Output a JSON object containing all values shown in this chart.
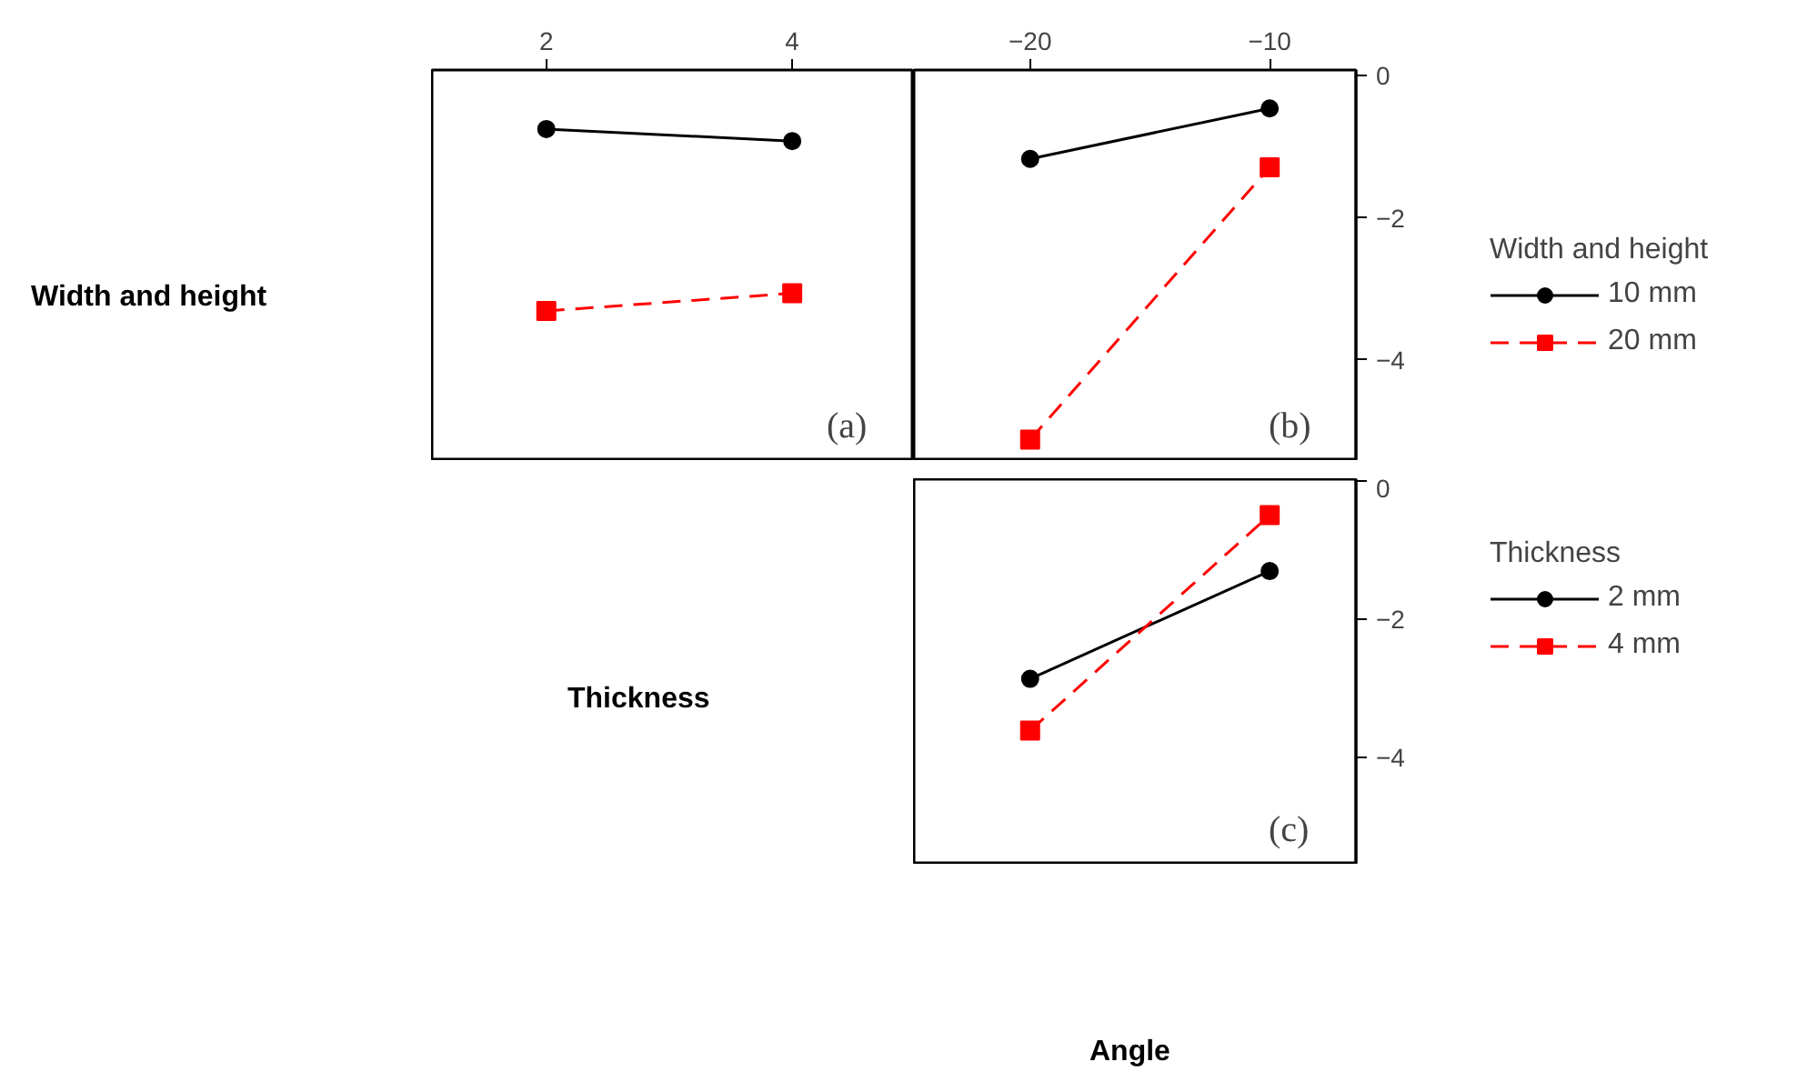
{
  "chart_data": [
    {
      "type": "line",
      "ylabel": "Width and height",
      "xlabel": "Thickness",
      "annotations": [
        "(a)"
      ],
      "x": [
        2,
        4
      ],
      "xlim": [
        1.07,
        4.99
      ],
      "xticks": [
        2,
        4
      ],
      "ylim": [
        -5.42,
        0.08
      ],
      "tick_labels": "x",
      "grid": false,
      "legend": false,
      "series": [
        {
          "color": "#000000",
          "marker": "circle",
          "line_style": "solid",
          "values": [
            -0.75,
            -0.92
          ]
        },
        {
          "color": "#ff0000",
          "marker": "square",
          "line_style": "dashed",
          "values": [
            -3.31,
            -3.06
          ]
        }
      ]
    },
    {
      "type": "line",
      "annotations": [
        "(b)"
      ],
      "legend_title": "Width and height",
      "x": [
        -20,
        -10
      ],
      "xlim": [
        -24.85,
        -6.4
      ],
      "xticks": [
        -20,
        -10
      ],
      "ylim": [
        -5.42,
        0.08
      ],
      "yticks": [
        0,
        -2,
        -4
      ],
      "grid": false,
      "legend": "right",
      "series": [
        {
          "name": "10 mm",
          "color": "#000000",
          "marker": "circle",
          "line_style": "solid",
          "values": [
            -1.17,
            -0.46
          ]
        },
        {
          "name": "20 mm",
          "color": "#ff0000",
          "marker": "square",
          "line_style": "dashed",
          "values": [
            -5.12,
            -1.29
          ]
        }
      ]
    },
    {
      "type": "line",
      "xlabel": "Angle",
      "annotations": [
        "(c)"
      ],
      "legend_title": "Thickness",
      "x": [
        -20,
        -10
      ],
      "xlim": [
        -24.85,
        -6.4
      ],
      "ylim": [
        -5.55,
        0.03
      ],
      "yticks": [
        0,
        -2,
        -4
      ],
      "tick_labels": "y",
      "grid": false,
      "legend": "right",
      "series": [
        {
          "name": "2 mm",
          "color": "#000000",
          "marker": "circle",
          "line_style": "solid",
          "values": [
            -2.86,
            -1.3
          ]
        },
        {
          "name": "4 mm",
          "color": "#ff0000",
          "marker": "square",
          "line_style": "dashed",
          "values": [
            -3.61,
            -0.49
          ]
        }
      ]
    }
  ]
}
